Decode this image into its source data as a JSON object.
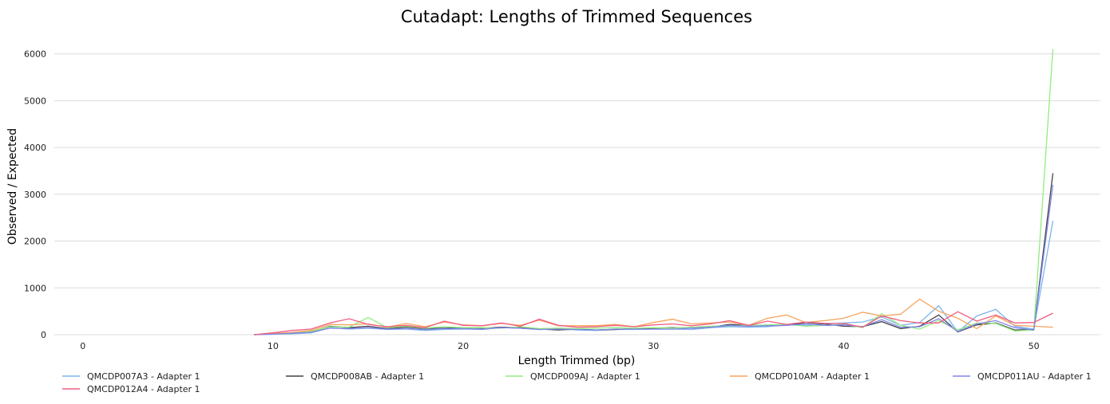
{
  "chart_data": {
    "type": "line",
    "title": "Cutadapt: Lengths of Trimmed Sequences",
    "xlabel": "Length Trimmed (bp)",
    "ylabel": "Observed / Expected",
    "xlim": [
      -1.5,
      53.5
    ],
    "ylim": [
      0,
      6300
    ],
    "xticks": [
      0,
      10,
      20,
      30,
      40,
      50
    ],
    "yticks": [
      0,
      1000,
      2000,
      3000,
      4000,
      5000,
      6000
    ],
    "grid": "horizontal",
    "legend_position": "bottom",
    "x": [
      9,
      10,
      11,
      12,
      13,
      14,
      15,
      16,
      17,
      18,
      19,
      20,
      21,
      22,
      23,
      24,
      25,
      26,
      27,
      28,
      29,
      30,
      31,
      32,
      33,
      34,
      35,
      36,
      37,
      38,
      39,
      40,
      41,
      42,
      43,
      44,
      45,
      46,
      47,
      48,
      49,
      50,
      51
    ],
    "series": [
      {
        "name": "QMCDP007A3 - Adapter 1",
        "color": "#7cb5ec",
        "values": [
          0,
          10,
          20,
          40,
          150,
          120,
          140,
          110,
          120,
          90,
          110,
          120,
          110,
          150,
          140,
          110,
          120,
          100,
          90,
          110,
          110,
          120,
          120,
          110,
          150,
          170,
          160,
          170,
          220,
          200,
          230,
          250,
          270,
          380,
          200,
          260,
          620,
          60,
          400,
          540,
          180,
          120,
          2430
        ]
      },
      {
        "name": "QMCDP008AB - Adapter 1",
        "color": "#434348",
        "values": [
          0,
          20,
          40,
          60,
          180,
          150,
          180,
          130,
          160,
          130,
          140,
          150,
          140,
          160,
          150,
          120,
          100,
          120,
          100,
          110,
          130,
          140,
          150,
          140,
          160,
          220,
          200,
          190,
          200,
          260,
          230,
          180,
          170,
          280,
          130,
          180,
          420,
          60,
          210,
          250,
          100,
          110,
          3450
        ]
      },
      {
        "name": "QMCDP009AJ - Adapter 1",
        "color": "#90ed7d",
        "values": [
          0,
          15,
          30,
          70,
          170,
          160,
          370,
          150,
          180,
          140,
          170,
          150,
          150,
          140,
          170,
          130,
          140,
          130,
          140,
          150,
          140,
          150,
          140,
          160,
          180,
          190,
          200,
          210,
          220,
          180,
          200,
          220,
          150,
          450,
          200,
          120,
          300,
          100,
          250,
          240,
          80,
          100,
          6100
        ]
      },
      {
        "name": "QMCDP010AM - Adapter 1",
        "color": "#f7a35c",
        "values": [
          0,
          25,
          50,
          90,
          220,
          210,
          230,
          160,
          240,
          170,
          270,
          210,
          190,
          240,
          200,
          310,
          190,
          190,
          190,
          220,
          170,
          260,
          330,
          230,
          250,
          270,
          200,
          350,
          420,
          260,
          300,
          350,
          480,
          400,
          440,
          760,
          500,
          350,
          130,
          400,
          200,
          180,
          160
        ]
      },
      {
        "name": "QMCDP011AU - Adapter 1",
        "color": "#8085e9",
        "values": [
          0,
          10,
          30,
          50,
          140,
          130,
          150,
          120,
          130,
          110,
          130,
          130,
          120,
          150,
          140,
          110,
          120,
          110,
          100,
          120,
          120,
          120,
          120,
          140,
          160,
          200,
          180,
          190,
          200,
          230,
          200,
          210,
          170,
          320,
          160,
          170,
          340,
          70,
          230,
          300,
          150,
          100,
          3200
        ]
      },
      {
        "name": "QMCDP012A4 - Adapter 1",
        "color": "#f15c80",
        "values": [
          0,
          40,
          90,
          120,
          250,
          340,
          220,
          170,
          200,
          150,
          290,
          200,
          190,
          250,
          180,
          330,
          200,
          160,
          170,
          200,
          170,
          210,
          230,
          190,
          230,
          300,
          200,
          290,
          220,
          270,
          240,
          240,
          160,
          400,
          300,
          250,
          250,
          490,
          290,
          420,
          250,
          260,
          460
        ]
      }
    ]
  }
}
